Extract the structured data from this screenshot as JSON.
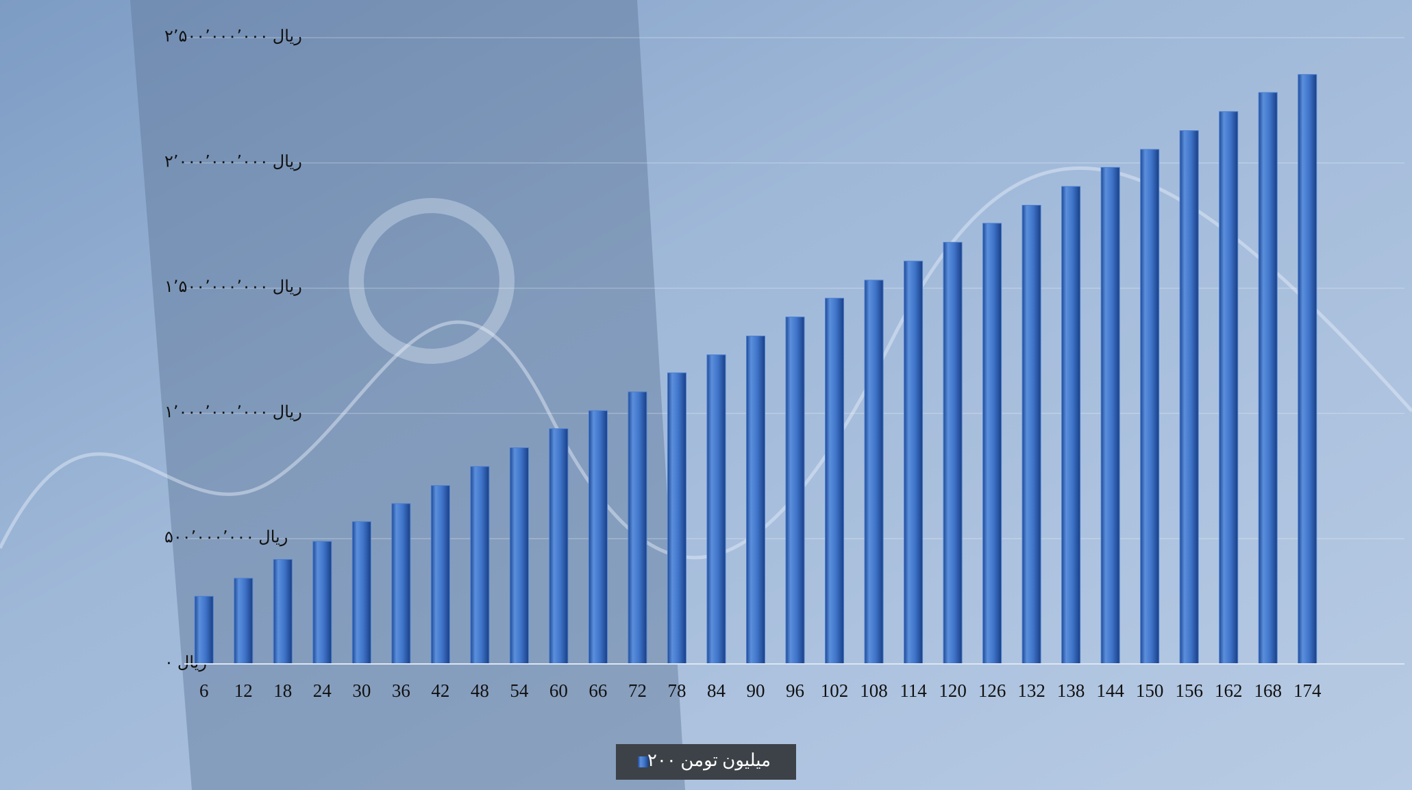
{
  "chart_data": {
    "type": "bar",
    "categories": [
      "6",
      "12",
      "18",
      "24",
      "30",
      "36",
      "42",
      "48",
      "54",
      "60",
      "66",
      "72",
      "78",
      "84",
      "90",
      "96",
      "102",
      "108",
      "114",
      "120",
      "126",
      "132",
      "138",
      "144",
      "150",
      "156",
      "162",
      "168",
      "174"
    ],
    "series": [
      {
        "name": "۲۰۰ میلیون تومن",
        "color": "#4a7fd0",
        "values": [
          270000000,
          342000000,
          417000000,
          489000000,
          568000000,
          640000000,
          712000000,
          788000000,
          863000000,
          939000000,
          1011000000,
          1086000000,
          1162000000,
          1234000000,
          1309000000,
          1385000000,
          1460000000,
          1532000000,
          1608000000,
          1683000000,
          1759000000,
          1831000000,
          1906000000,
          1982000000,
          2054000000,
          2129000000,
          2205000000,
          2281000000,
          2353000000
        ]
      }
    ],
    "ylim": [
      0,
      2500000000
    ],
    "yticks": [
      {
        "value": 0,
        "label": "ریال ۰"
      },
      {
        "value": 500000000,
        "label": "ریال ۵۰۰٬۰۰۰٬۰۰۰"
      },
      {
        "value": 1000000000,
        "label": "ریال ۱٬۰۰۰٬۰۰۰٬۰۰۰"
      },
      {
        "value": 1500000000,
        "label": "ریال ۱٬۵۰۰٬۰۰۰٬۰۰۰"
      },
      {
        "value": 2000000000,
        "label": "ریال ۲٬۰۰۰٬۰۰۰٬۰۰۰"
      },
      {
        "value": 2500000000,
        "label": "ریال ۲٬۵۰۰٬۰۰۰٬۰۰۰"
      }
    ],
    "grid": true,
    "legend": "bottom"
  }
}
